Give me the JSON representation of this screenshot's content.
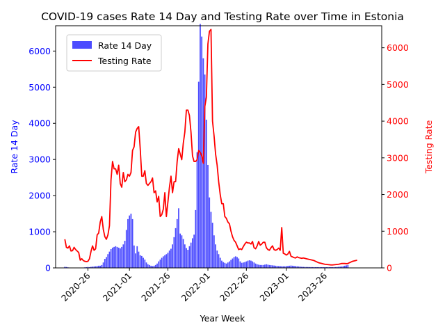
{
  "chart_data": {
    "type": "bar+line",
    "title": "COVID-19 cases Rate 14 Day and Testing Rate over Time in Estonia",
    "xlabel": "Year Week",
    "ylabel_left": "Rate 14 Day",
    "ylabel_right": "Testing Rate",
    "ylim_left": [
      0,
      6700
    ],
    "ylim_right": [
      0,
      6600
    ],
    "yticks_left": [
      "0",
      "1000",
      "2000",
      "3000",
      "4000",
      "5000",
      "6000"
    ],
    "yticks_right": [
      "0",
      "1000",
      "2000",
      "3000",
      "4000",
      "5000",
      "6000"
    ],
    "x_tick_labels": [
      "2020-26",
      "2021-01",
      "2021-26",
      "2022-01",
      "2022-26",
      "2023-01",
      "2023-26"
    ],
    "x_tick_positions": [
      15,
      42,
      67,
      93,
      118,
      144,
      169
    ],
    "x_range": [
      -6,
      206
    ],
    "legend_position": "upper-left",
    "colors": {
      "bars": "#0000ff",
      "line": "#ff0000",
      "left_axis": "#0000ff",
      "right_axis": "#ff0000"
    },
    "series": [
      {
        "name": "Rate 14 Day",
        "kind": "bar",
        "values": [
          30,
          25,
          15,
          10,
          5,
          5,
          5,
          5,
          5,
          5,
          5,
          8,
          10,
          15,
          20,
          25,
          20,
          30,
          35,
          40,
          45,
          50,
          60,
          60,
          80,
          150,
          250,
          300,
          380,
          450,
          520,
          560,
          580,
          600,
          580,
          560,
          540,
          580,
          650,
          750,
          1050,
          1350,
          1450,
          1500,
          1350,
          620,
          400,
          600,
          450,
          350,
          330,
          280,
          230,
          150,
          100,
          80,
          60,
          50,
          60,
          80,
          120,
          180,
          230,
          280,
          320,
          350,
          380,
          420,
          480,
          530,
          650,
          850,
          1100,
          1350,
          1650,
          950,
          900,
          800,
          650,
          550,
          500,
          600,
          700,
          820,
          920,
          1600,
          3200,
          5150,
          6750,
          6400,
          5800,
          5350,
          4100,
          2850,
          1950,
          1550,
          1250,
          900,
          650,
          480,
          380,
          280,
          200,
          160,
          140,
          120,
          150,
          180,
          220,
          260,
          300,
          320,
          300,
          260,
          180,
          140,
          150,
          160,
          180,
          200,
          210,
          200,
          180,
          150,
          120,
          100,
          90,
          80,
          80,
          80,
          90,
          100,
          90,
          80,
          75,
          70,
          65,
          60,
          55,
          50,
          48,
          46,
          45,
          45,
          50,
          55,
          60,
          65,
          60,
          55,
          50,
          45,
          40,
          35,
          30,
          28,
          26,
          25,
          24,
          23,
          22,
          21,
          20,
          20,
          20,
          20,
          20,
          20,
          20,
          20,
          20,
          20,
          20,
          20,
          20,
          20,
          22,
          25,
          30,
          35,
          40,
          50,
          60,
          70,
          80
        ]
      },
      {
        "name": "Testing Rate",
        "kind": "line",
        "values": [
          780,
          560,
          540,
          600,
          460,
          470,
          560,
          500,
          460,
          420,
          210,
          250,
          200,
          180,
          170,
          180,
          250,
          450,
          600,
          480,
          520,
          900,
          950,
          1250,
          1400,
          1050,
          850,
          780,
          900,
          1150,
          2400,
          2900,
          2700,
          2700,
          2550,
          2800,
          2300,
          2200,
          2600,
          2350,
          2400,
          2550,
          2500,
          2600,
          3200,
          3300,
          3700,
          3800,
          3850,
          3250,
          2500,
          2500,
          2650,
          2300,
          2250,
          2300,
          2350,
          2450,
          2050,
          2100,
          1800,
          1950,
          1400,
          1450,
          1600,
          2050,
          1400,
          1800,
          2200,
          2500,
          2050,
          2350,
          2350,
          2900,
          3250,
          3100,
          2950,
          3400,
          3700,
          4300,
          4300,
          4150,
          3700,
          3050,
          2900,
          2900,
          2950,
          3200,
          3150,
          3050,
          2850,
          4400,
          4650,
          6100,
          6450,
          6500,
          4000,
          3600,
          3100,
          2800,
          2350,
          2000,
          1750,
          1750,
          1400,
          1350,
          1250,
          1200,
          1000,
          850,
          750,
          700,
          600,
          500,
          520,
          500,
          580,
          650,
          700,
          680,
          680,
          650,
          720,
          550,
          520,
          600,
          720,
          620,
          650,
          700,
          700,
          550,
          500,
          480,
          550,
          600,
          500,
          480,
          500,
          540,
          480,
          1100,
          400,
          380,
          350,
          380,
          450,
          320,
          300,
          280,
          270,
          300,
          280,
          270,
          260,
          270,
          260,
          250,
          240,
          230,
          220,
          210,
          200,
          180,
          160,
          140,
          130,
          120,
          110,
          100,
          95,
          90,
          85,
          80,
          80,
          85,
          90,
          95,
          100,
          110,
          120,
          120,
          120,
          115,
          120,
          140,
          160,
          180,
          190,
          200,
          210
        ]
      }
    ]
  }
}
